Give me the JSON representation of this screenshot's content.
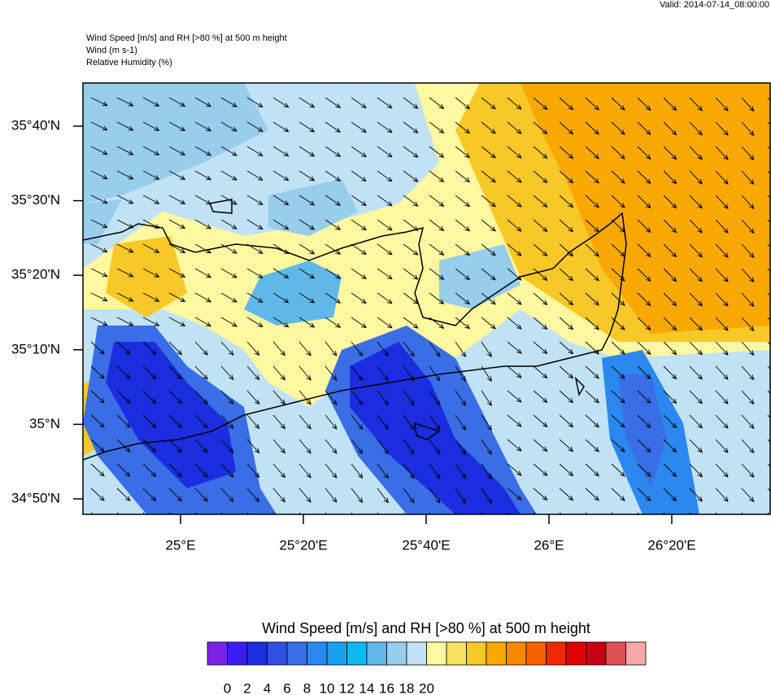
{
  "header": {
    "valid": "Valid: 2014-07-14_08:00:00",
    "lines": [
      "Wind Speed [m/s] and RH [>80 %] at 500 m height",
      "Wind   (m s-1)",
      "Relative Humidity   (%)"
    ]
  },
  "map": {
    "lat_labels": [
      "35°40'N",
      "35°30'N",
      "35°20'N",
      "35°10'N",
      "35°N",
      "34°50'N"
    ],
    "lon_labels": [
      "25°E",
      "25°20'E",
      "25°40'E",
      "26°E",
      "26°20'E"
    ]
  },
  "colorbar": {
    "title": "Wind Speed [m/s] and RH [>80 %] at 500 m height",
    "colors": [
      "#7b22e6",
      "#3a1ef0",
      "#1a2ee0",
      "#3050e0",
      "#3a6ee6",
      "#2a88f0",
      "#1aa0f0",
      "#10b8f0",
      "#60b8e8",
      "#98cdec",
      "#c0e2f4",
      "#fff8a0",
      "#f8e060",
      "#f8c828",
      "#f8a800",
      "#f88800",
      "#f86000",
      "#f02800",
      "#e00000",
      "#c80010",
      "#e05050",
      "#f8a8a8"
    ],
    "labels": [
      0,
      2,
      4,
      6,
      8,
      10,
      12,
      14,
      16,
      18,
      20
    ]
  }
}
